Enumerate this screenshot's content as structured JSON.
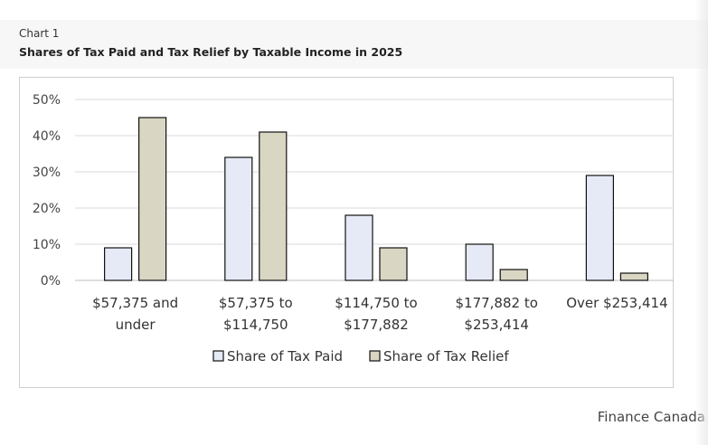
{
  "header": {
    "chart_label": "Chart 1",
    "title": "Shares of Tax Paid and Tax Relief by Taxable Income in 2025"
  },
  "source": "Finance Canada",
  "chart_data": {
    "type": "bar",
    "title": "Shares of Tax Paid and Tax Relief by Taxable Income in 2025",
    "xlabel": "",
    "ylabel": "",
    "categories": [
      [
        "$57,375 and",
        "under"
      ],
      [
        "$57,375 to",
        "$114,750"
      ],
      [
        "$114,750 to",
        "$177,882"
      ],
      [
        "$177,882 to",
        "$253,414"
      ],
      [
        "Over $253,414"
      ]
    ],
    "series": [
      {
        "name": "Share of Tax Paid",
        "values": [
          9,
          34,
          18,
          10,
          29
        ],
        "color": "#e6eaf6"
      },
      {
        "name": "Share of Tax Relief",
        "values": [
          45,
          41,
          9,
          3,
          2
        ],
        "color": "#d9d6c3"
      }
    ],
    "y_ticks": [
      0,
      10,
      20,
      30,
      40,
      50
    ],
    "y_tick_labels": [
      "0%",
      "10%",
      "20%",
      "30%",
      "40%",
      "50%"
    ],
    "ylim": [
      0,
      50
    ],
    "grid": true,
    "legend_position": "bottom"
  }
}
